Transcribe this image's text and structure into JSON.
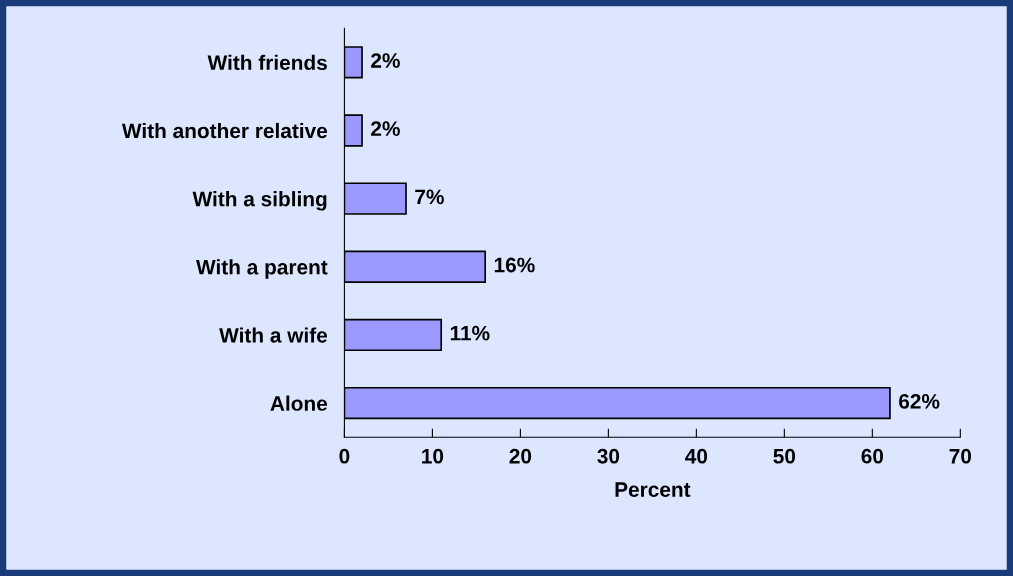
{
  "chart_data": {
    "type": "bar",
    "orientation": "horizontal",
    "xlabel": "Percent",
    "categories": [
      "With friends",
      "With another relative",
      "With a sibling",
      "With a parent",
      "With a wife",
      "Alone"
    ],
    "values": [
      2,
      2,
      7,
      16,
      11,
      62
    ],
    "value_labels": [
      "2%",
      "2%",
      "7%",
      "16%",
      "11%",
      "62%"
    ],
    "color": "#9999ff",
    "xlim": [
      0,
      70
    ],
    "xticks": [
      0,
      10,
      20,
      30,
      40,
      50,
      60,
      70
    ],
    "grid": false,
    "legend": false
  }
}
